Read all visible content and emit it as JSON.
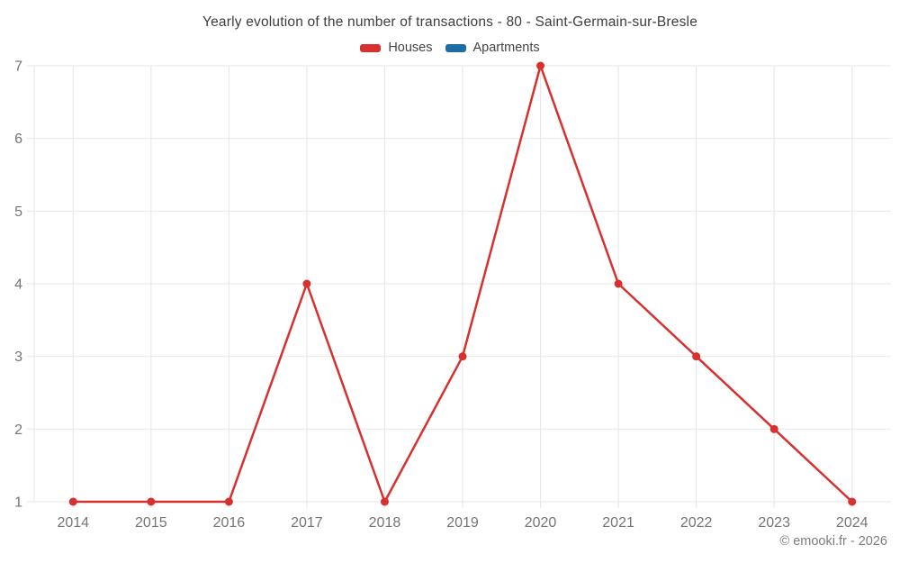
{
  "chart_data": {
    "type": "line",
    "title": "Yearly evolution of the number of transactions - 80 - Saint-Germain-sur-Bresle",
    "categories": [
      "2014",
      "2015",
      "2016",
      "2017",
      "2018",
      "2019",
      "2020",
      "2021",
      "2022",
      "2023",
      "2024"
    ],
    "series": [
      {
        "name": "Houses",
        "color": "#d7312f",
        "values": [
          1,
          1,
          1,
          4,
          1,
          3,
          7,
          4,
          3,
          2,
          1
        ]
      },
      {
        "name": "Apartments",
        "color": "#1c6ea4",
        "values": []
      }
    ],
    "xlabel": "",
    "ylabel": "",
    "ylim": [
      1,
      7
    ],
    "yticks": [
      1,
      2,
      3,
      4,
      5,
      6,
      7
    ],
    "grid": true,
    "legend_position": "top"
  },
  "footer": {
    "copyright": "© emooki.fr - 2026"
  },
  "colors": {
    "grid": "#e9e9e9",
    "tick_label": "#757575",
    "title_text": "#3d3d3d"
  }
}
